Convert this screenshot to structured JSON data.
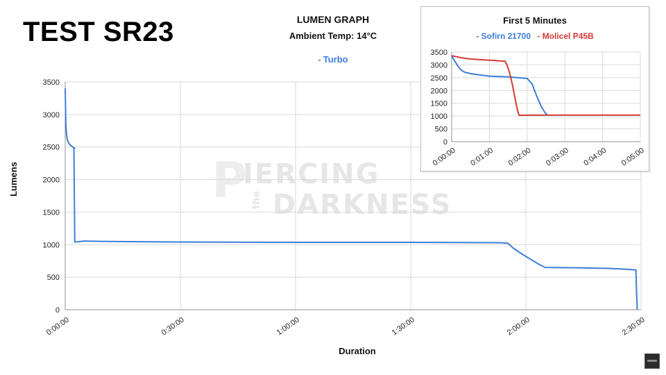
{
  "page": {
    "test_title": "TEST SR23"
  },
  "chart_data": [
    {
      "type": "line",
      "title": "LUMEN GRAPH",
      "subtitle": "Ambient Temp: 14°C",
      "xlabel": "Duration",
      "ylabel": "Lumens",
      "xlim": [
        0,
        9000
      ],
      "ylim": [
        0,
        3500
      ],
      "x_unit": "seconds",
      "x_ticks": [
        0,
        1800,
        3600,
        5400,
        7200,
        9000
      ],
      "x_tick_labels": [
        "0:00:00",
        "0:30:00",
        "1:00:00",
        "1:30:00",
        "2:00:00",
        "2:30:00"
      ],
      "y_ticks": [
        0,
        500,
        1000,
        1500,
        2000,
        2500,
        3000,
        3500
      ],
      "y_tick_labels": [
        "0",
        "500",
        "1000",
        "1500",
        "2000",
        "2500",
        "3000",
        "3500"
      ],
      "grid": true,
      "legend_position": "top-center",
      "series": [
        {
          "name": "Turbo",
          "color": "#3c7dd8",
          "x": [
            0,
            5,
            10,
            20,
            30,
            45,
            60,
            90,
            120,
            150,
            135,
            150,
            200,
            300,
            600,
            1800,
            3600,
            5400,
            6800,
            6920,
            7000,
            7100,
            7200,
            7300,
            7400,
            7500,
            8000,
            8500,
            8800,
            8920,
            8930,
            8940
          ],
          "y": [
            3400,
            3100,
            2850,
            2700,
            2620,
            2580,
            2550,
            2520,
            2500,
            2480,
            2470,
            1040,
            1045,
            1055,
            1050,
            1040,
            1035,
            1035,
            1030,
            1020,
            950,
            880,
            820,
            760,
            700,
            650,
            645,
            635,
            620,
            610,
            300,
            0
          ]
        }
      ]
    },
    {
      "type": "line",
      "title": "First 5 Minutes",
      "xlim": [
        0,
        300
      ],
      "ylim": [
        0,
        3500
      ],
      "x_unit": "seconds",
      "x_ticks": [
        0,
        60,
        120,
        180,
        240,
        300
      ],
      "x_tick_labels": [
        "0:00:00",
        "0:01:00",
        "0:02:00",
        "0:03:00",
        "0:04:00",
        "0:05:00"
      ],
      "y_ticks": [
        0,
        500,
        1000,
        1500,
        2000,
        2500,
        3000,
        3500
      ],
      "y_tick_labels": [
        "0",
        "500",
        "1000",
        "1500",
        "2000",
        "2500",
        "3000",
        "3500"
      ],
      "grid": true,
      "legend_position": "top-center",
      "series": [
        {
          "name": "Sofirn 21700",
          "color": "#3c7dd8",
          "x": [
            0,
            5,
            10,
            15,
            20,
            25,
            30,
            40,
            60,
            90,
            110,
            115,
            120,
            128,
            135,
            142,
            148,
            152
          ],
          "y": [
            3350,
            3150,
            2950,
            2800,
            2720,
            2690,
            2660,
            2620,
            2560,
            2530,
            2490,
            2480,
            2470,
            2250,
            1800,
            1400,
            1150,
            1040
          ]
        },
        {
          "name": "Molicel P45B",
          "color": "#d33a34",
          "x": [
            0,
            15,
            30,
            50,
            70,
            85,
            88,
            92,
            96,
            100,
            104,
            107,
            110,
            150,
            200,
            250,
            300
          ],
          "y": [
            3360,
            3280,
            3230,
            3200,
            3170,
            3140,
            3000,
            2700,
            2300,
            1800,
            1300,
            1040,
            1030,
            1040,
            1040,
            1040,
            1040
          ]
        }
      ]
    }
  ],
  "watermark": {
    "letter": "P",
    "line1": "IERCING",
    "word": "the",
    "line2": "DARKNESS"
  },
  "colors": {
    "blue": "#3c7dd8",
    "red": "#d33a34",
    "grid": "#d9d9d9",
    "axis": "#8c8c8c"
  }
}
